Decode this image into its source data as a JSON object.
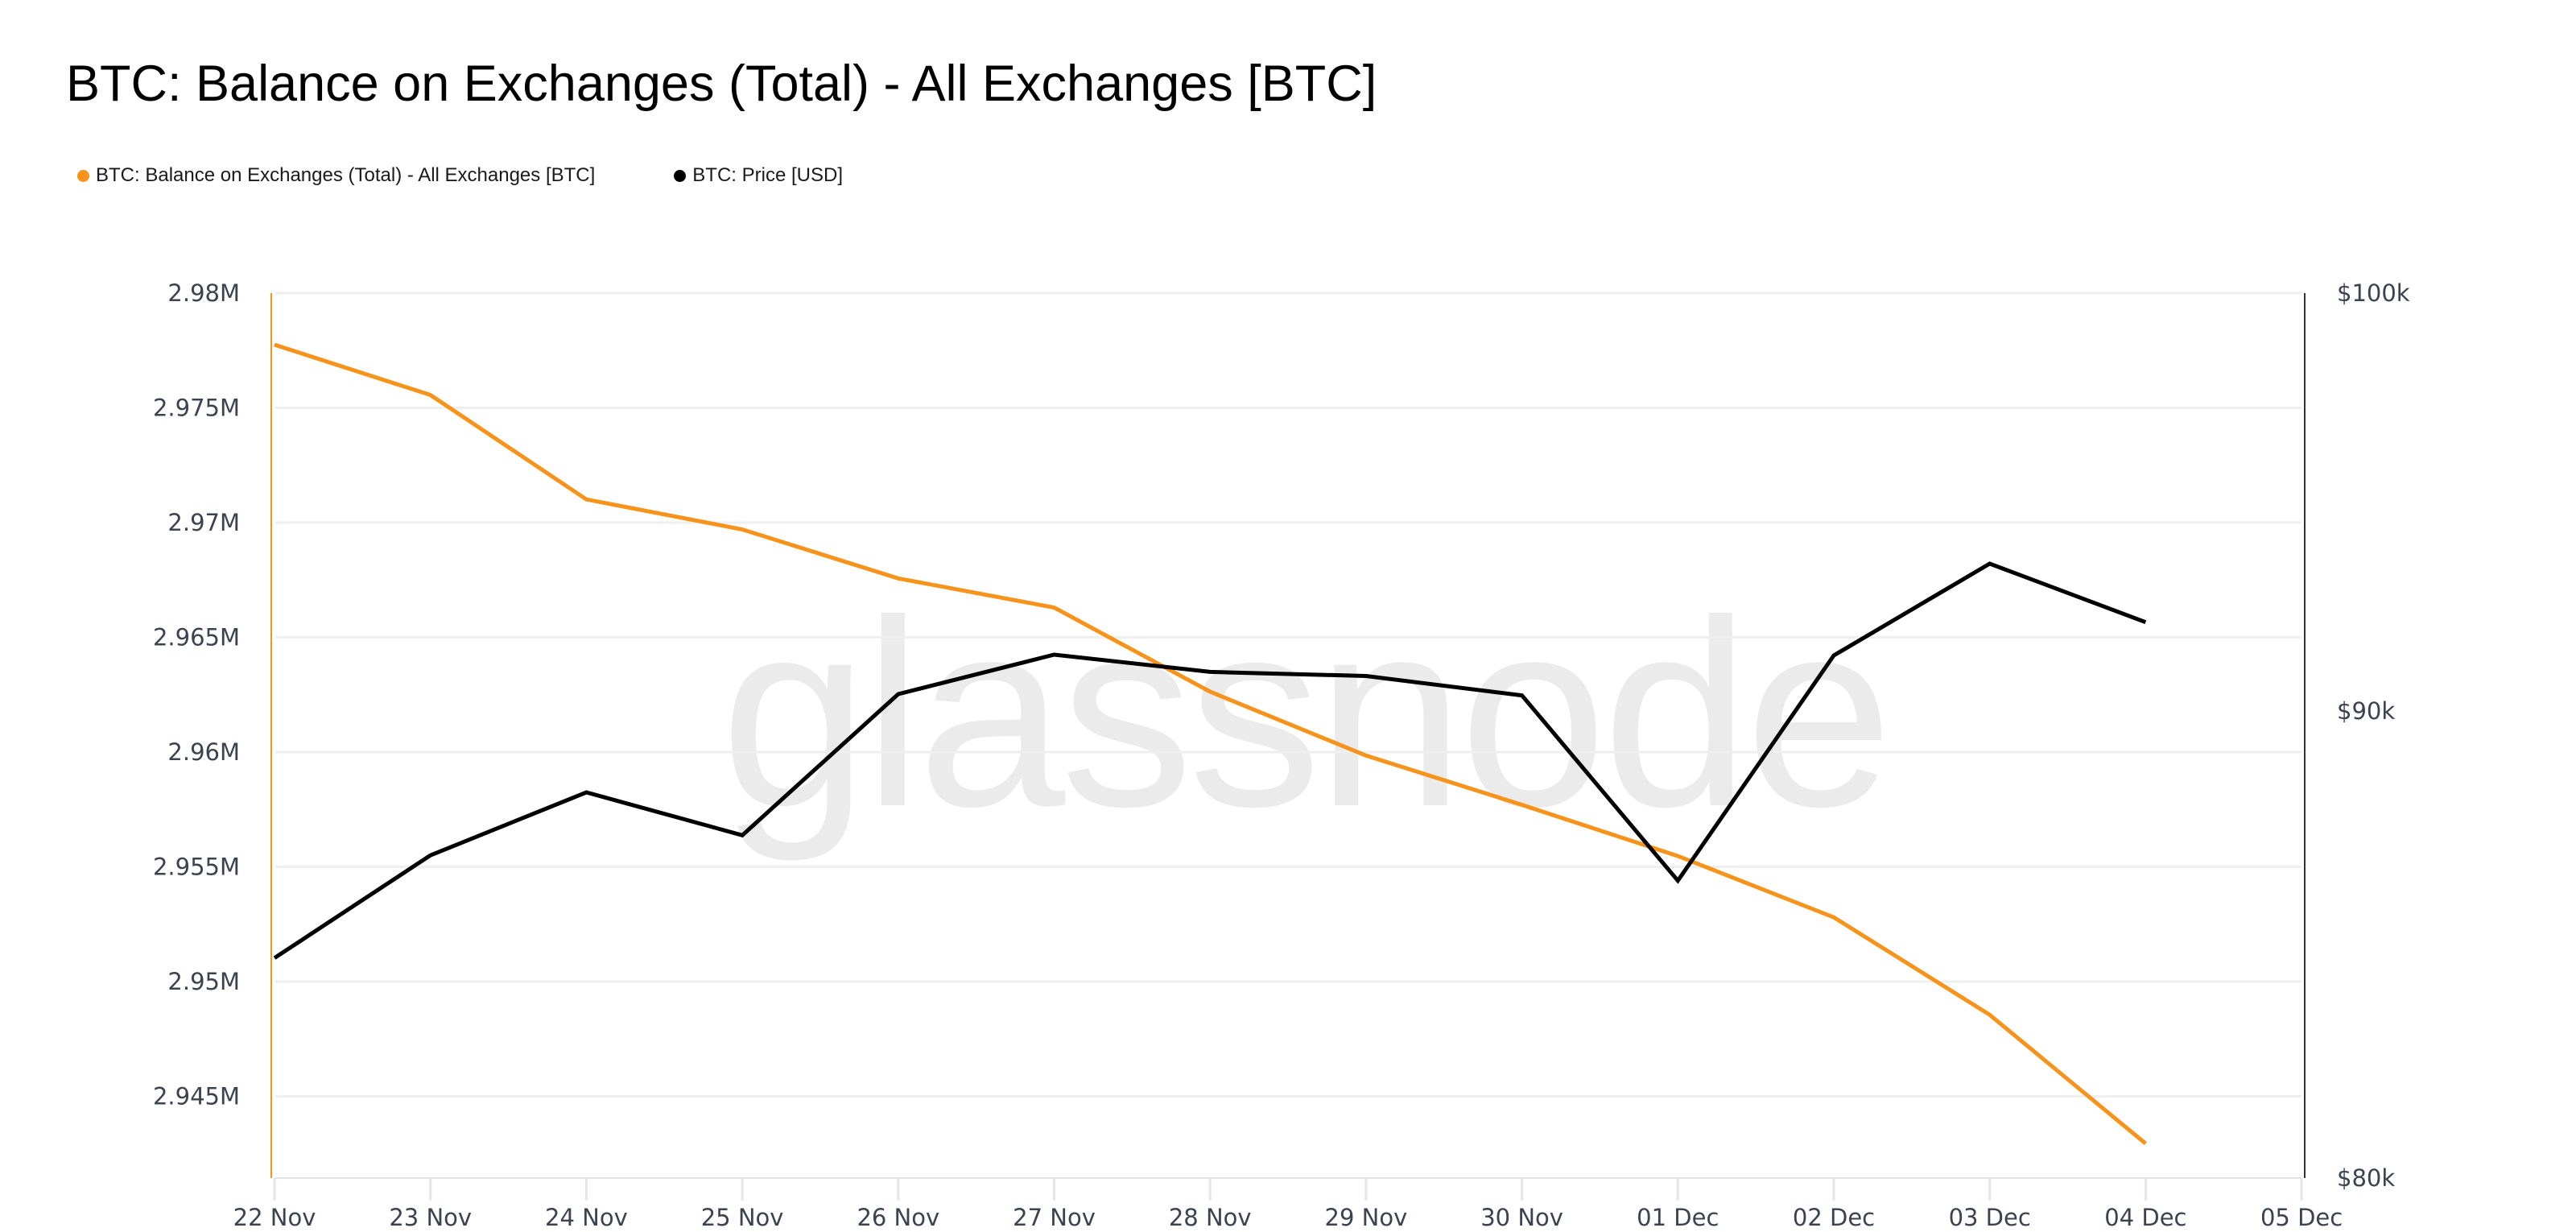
{
  "title": "BTC: Balance on Exchanges (Total) - All Exchanges [BTC]",
  "legend": [
    {
      "label": "BTC: Balance on Exchanges (Total) - All Exchanges [BTC]",
      "color": "#f7931a"
    },
    {
      "label": "BTC: Price [USD]",
      "color": "#000000"
    }
  ],
  "watermark": "glassnode",
  "colors": {
    "balance_line": "#f7931a",
    "price_line": "#000000",
    "grid": "#efefef",
    "axis_text": "#3b4250",
    "watermark": "#ebebeb"
  },
  "chart_data": {
    "type": "line",
    "title": "BTC: Balance on Exchanges (Total) - All Exchanges [BTC]",
    "xlabel": "",
    "ylabel": "",
    "x": [
      "22 Nov",
      "23 Nov",
      "24 Nov",
      "25 Nov",
      "26 Nov",
      "27 Nov",
      "28 Nov",
      "29 Nov",
      "30 Nov",
      "01 Dec",
      "02 Dec",
      "03 Dec",
      "04 Dec"
    ],
    "x_ticks": [
      "22 Nov",
      "23 Nov",
      "24 Nov",
      "25 Nov",
      "26 Nov",
      "27 Nov",
      "28 Nov",
      "29 Nov",
      "30 Nov",
      "01 Dec",
      "02 Dec",
      "03 Dec",
      "04 Dec",
      "05 Dec"
    ],
    "series": [
      {
        "name": "BTC: Balance on Exchanges (Total) - All Exchanges [BTC]",
        "axis": "left",
        "color": "#f7931a",
        "values": [
          2977750,
          2975560,
          2971010,
          2969700,
          2967570,
          2966300,
          2962630,
          2959850,
          2957700,
          2955470,
          2952800,
          2948550,
          2942940
        ]
      },
      {
        "name": "BTC: Price [USD]",
        "axis": "right",
        "color": "#000000",
        "values": [
          84565,
          86782,
          88171,
          87222,
          90383,
          91287,
          90891,
          90797,
          90354,
          86229,
          91268,
          93405,
          92037
        ]
      }
    ],
    "y_left": {
      "ticks": [
        2980000,
        2975000,
        2970000,
        2965000,
        2960000,
        2955000,
        2950000,
        2945000
      ],
      "tick_labels": [
        "2.98M",
        "2.975M",
        "2.97M",
        "2.965M",
        "2.96M",
        "2.955M",
        "2.95M",
        "2.945M"
      ],
      "range": [
        2941470,
        2980000
      ],
      "scale": "linear"
    },
    "y_right": {
      "ticks": [
        100000,
        90000,
        80000
      ],
      "tick_labels": [
        "$100k",
        "$90k",
        "$80k"
      ],
      "range": [
        80000,
        100000
      ],
      "scale": "log"
    },
    "grid": true,
    "legend_position": "top-left"
  }
}
